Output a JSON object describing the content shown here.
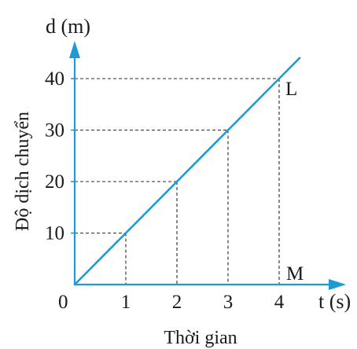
{
  "chart_data": {
    "type": "line",
    "xlabel": "Thời gian",
    "ylabel": "Độ dịch chuyển",
    "x_axis_unit": "t (s)",
    "y_axis_unit": "d (m)",
    "origin_label": "0",
    "x_ticks": [
      "1",
      "2",
      "3",
      "4"
    ],
    "y_ticks": [
      "10",
      "20",
      "30",
      "40"
    ],
    "xlim": [
      0,
      4.45
    ],
    "ylim": [
      0,
      44
    ],
    "grid": false,
    "guide_lines": "dashed",
    "series": [
      {
        "x": [
          0,
          1,
          2,
          3,
          4,
          4.4
        ],
        "y": [
          0,
          10,
          20,
          30,
          40,
          44
        ]
      }
    ],
    "annotations": [
      {
        "text": "L",
        "x": 4,
        "y": 40
      },
      {
        "text": "M",
        "x": 4,
        "y": 0
      }
    ],
    "colors": {
      "axis": "#1e9ad6",
      "line": "#1e9ad6",
      "guides": "#2b2b2b",
      "text": "#1a1a1a"
    }
  }
}
